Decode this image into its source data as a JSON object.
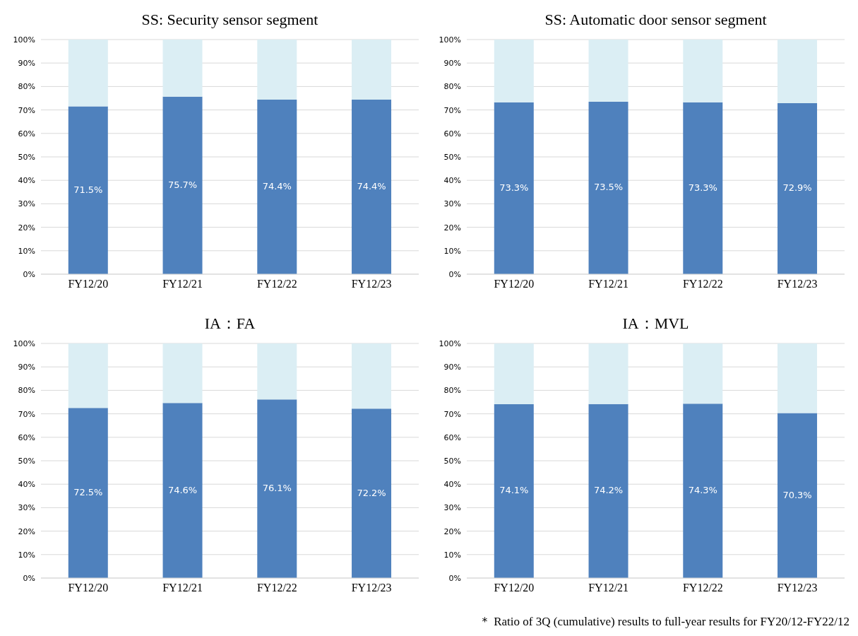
{
  "chart_data": [
    {
      "type": "bar",
      "title": "SS: Security sensor segment",
      "categories": [
        "FY12/20",
        "FY12/21",
        "FY12/22",
        "FY12/23"
      ],
      "stacked": true,
      "grid": "y",
      "ylim": [
        0,
        100
      ],
      "yticks": [
        {
          "value": 0,
          "label": "0%"
        },
        {
          "value": 10,
          "label": "10%"
        },
        {
          "value": 20,
          "label": "20%"
        },
        {
          "value": 30,
          "label": "30%"
        },
        {
          "value": 40,
          "label": "40%"
        },
        {
          "value": 50,
          "label": "50%"
        },
        {
          "value": 60,
          "label": "60%"
        },
        {
          "value": 70,
          "label": "70%"
        },
        {
          "value": 80,
          "label": "80%"
        },
        {
          "value": 90,
          "label": "90%"
        },
        {
          "value": 100,
          "label": "100%"
        }
      ],
      "series": [
        {
          "color": "#4f81bd",
          "values": [
            71.5,
            75.7,
            74.4,
            74.4
          ],
          "value_labels": [
            "71.5%",
            "75.7%",
            "74.4%",
            "74.4%"
          ]
        },
        {
          "color": "#dbeef4",
          "values": [
            28.5,
            24.3,
            25.6,
            25.6
          ]
        }
      ]
    },
    {
      "type": "bar",
      "title": "SS: Automatic door sensor segment",
      "categories": [
        "FY12/20",
        "FY12/21",
        "FY12/22",
        "FY12/23"
      ],
      "stacked": true,
      "grid": "y",
      "ylim": [
        0,
        100
      ],
      "yticks": [
        {
          "value": 0,
          "label": "0%"
        },
        {
          "value": 10,
          "label": "10%"
        },
        {
          "value": 20,
          "label": "20%"
        },
        {
          "value": 30,
          "label": "30%"
        },
        {
          "value": 40,
          "label": "40%"
        },
        {
          "value": 50,
          "label": "50%"
        },
        {
          "value": 60,
          "label": "60%"
        },
        {
          "value": 70,
          "label": "70%"
        },
        {
          "value": 80,
          "label": "80%"
        },
        {
          "value": 90,
          "label": "90%"
        },
        {
          "value": 100,
          "label": "100%"
        }
      ],
      "series": [
        {
          "color": "#4f81bd",
          "values": [
            73.3,
            73.5,
            73.3,
            72.9
          ],
          "value_labels": [
            "73.3%",
            "73.5%",
            "73.3%",
            "72.9%"
          ]
        },
        {
          "color": "#dbeef4",
          "values": [
            26.7,
            26.5,
            26.7,
            27.1
          ]
        }
      ]
    },
    {
      "type": "bar",
      "title": "IA：FA",
      "categories": [
        "FY12/20",
        "FY12/21",
        "FY12/22",
        "FY12/23"
      ],
      "stacked": true,
      "grid": "y",
      "ylim": [
        0,
        100
      ],
      "yticks": [
        {
          "value": 0,
          "label": "0%"
        },
        {
          "value": 10,
          "label": "10%"
        },
        {
          "value": 20,
          "label": "20%"
        },
        {
          "value": 30,
          "label": "30%"
        },
        {
          "value": 40,
          "label": "40%"
        },
        {
          "value": 50,
          "label": "50%"
        },
        {
          "value": 60,
          "label": "60%"
        },
        {
          "value": 70,
          "label": "70%"
        },
        {
          "value": 80,
          "label": "80%"
        },
        {
          "value": 90,
          "label": "90%"
        },
        {
          "value": 100,
          "label": "100%"
        }
      ],
      "series": [
        {
          "color": "#4f81bd",
          "values": [
            72.5,
            74.6,
            76.1,
            72.2
          ],
          "value_labels": [
            "72.5%",
            "74.6%",
            "76.1%",
            "72.2%"
          ]
        },
        {
          "color": "#dbeef4",
          "values": [
            27.5,
            25.4,
            23.9,
            27.8
          ]
        }
      ]
    },
    {
      "type": "bar",
      "title": "IA：MVL",
      "categories": [
        "FY12/20",
        "FY12/21",
        "FY12/22",
        "FY12/23"
      ],
      "stacked": true,
      "grid": "y",
      "ylim": [
        0,
        100
      ],
      "yticks": [
        {
          "value": 0,
          "label": "0%"
        },
        {
          "value": 10,
          "label": "10%"
        },
        {
          "value": 20,
          "label": "20%"
        },
        {
          "value": 30,
          "label": "30%"
        },
        {
          "value": 40,
          "label": "40%"
        },
        {
          "value": 50,
          "label": "50%"
        },
        {
          "value": 60,
          "label": "60%"
        },
        {
          "value": 70,
          "label": "70%"
        },
        {
          "value": 80,
          "label": "80%"
        },
        {
          "value": 90,
          "label": "90%"
        },
        {
          "value": 100,
          "label": "100%"
        }
      ],
      "series": [
        {
          "color": "#4f81bd",
          "values": [
            74.1,
            74.2,
            74.3,
            70.3
          ],
          "value_labels": [
            "74.1%",
            "74.2%",
            "74.3%",
            "70.3%"
          ]
        },
        {
          "color": "#dbeef4",
          "values": [
            25.9,
            25.8,
            25.7,
            29.7
          ]
        }
      ],
      "annotations": [
        "＊ Ratio of 3Q (cumulative) results to full-year results for FY20/12-FY22/12"
      ]
    }
  ]
}
